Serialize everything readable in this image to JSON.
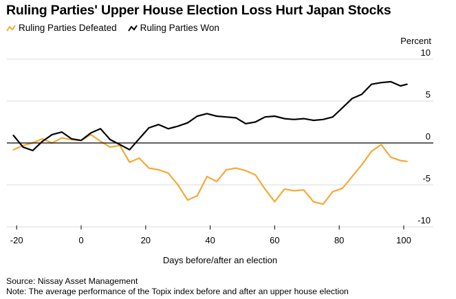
{
  "title": "Ruling Parties' Upper House Election Loss Hurt Japan Stocks",
  "unit_label": "Percent",
  "source": "Source: Nissay Asset Management",
  "note": "Note: The average performance of the Topix index before and after an upper house election",
  "colors": {
    "defeated": "#f7a832",
    "won": "#000000",
    "zero_line": "#000000",
    "grid": "#d9d9d9"
  },
  "chart_data": {
    "type": "line",
    "xlabel": "Days before/after an election",
    "ylabel": "Percent",
    "xlim": [
      -21,
      102
    ],
    "ylim": [
      -10.5,
      10.5
    ],
    "x_ticks": [
      -20,
      0,
      20,
      40,
      60,
      80,
      100
    ],
    "y_ticks": [
      10,
      5,
      0,
      -5,
      -10
    ],
    "grid": true,
    "legend": "top-left",
    "series": [
      {
        "name": "Ruling Parties Defeated",
        "color": "#f7a832",
        "x": [
          -21,
          -18,
          -15,
          -12,
          -9,
          -6,
          -3,
          0,
          3,
          6,
          9,
          12,
          15,
          18,
          21,
          24,
          27,
          30,
          33,
          36,
          39,
          42,
          45,
          48,
          51,
          54,
          57,
          60,
          63,
          66,
          69,
          72,
          75,
          78,
          81,
          84,
          87,
          90,
          93,
          96,
          99,
          101
        ],
        "y": [
          -0.8,
          -0.3,
          0.0,
          0.5,
          0.0,
          0.6,
          0.4,
          0.3,
          1.0,
          0.2,
          -0.5,
          -0.3,
          -2.3,
          -1.8,
          -3.0,
          -3.2,
          -3.6,
          -5.0,
          -6.8,
          -6.3,
          -4.0,
          -4.6,
          -3.2,
          -3.0,
          -3.3,
          -3.8,
          -5.5,
          -7.0,
          -5.5,
          -5.7,
          -5.6,
          -7.0,
          -7.3,
          -5.8,
          -5.4,
          -4.0,
          -2.6,
          -1.0,
          -0.2,
          -1.7,
          -2.1,
          -2.2
        ]
      },
      {
        "name": "Ruling Parties Won",
        "color": "#000000",
        "x": [
          -21,
          -18,
          -15,
          -12,
          -9,
          -6,
          -3,
          0,
          3,
          6,
          9,
          12,
          15,
          18,
          21,
          24,
          27,
          30,
          33,
          36,
          39,
          42,
          45,
          48,
          51,
          54,
          57,
          60,
          63,
          66,
          69,
          72,
          75,
          78,
          81,
          84,
          87,
          90,
          93,
          96,
          99,
          101
        ],
        "y": [
          0.9,
          -0.5,
          -0.9,
          0.2,
          1.0,
          1.3,
          0.5,
          0.3,
          1.2,
          1.7,
          0.4,
          -0.2,
          -0.8,
          0.5,
          1.8,
          2.2,
          1.7,
          2.0,
          2.4,
          3.2,
          3.5,
          3.2,
          3.1,
          3.0,
          2.3,
          2.5,
          3.1,
          3.2,
          2.9,
          2.8,
          2.9,
          2.7,
          2.8,
          3.1,
          4.2,
          5.3,
          5.8,
          7.0,
          7.2,
          7.3,
          6.8,
          7.0
        ]
      }
    ]
  }
}
